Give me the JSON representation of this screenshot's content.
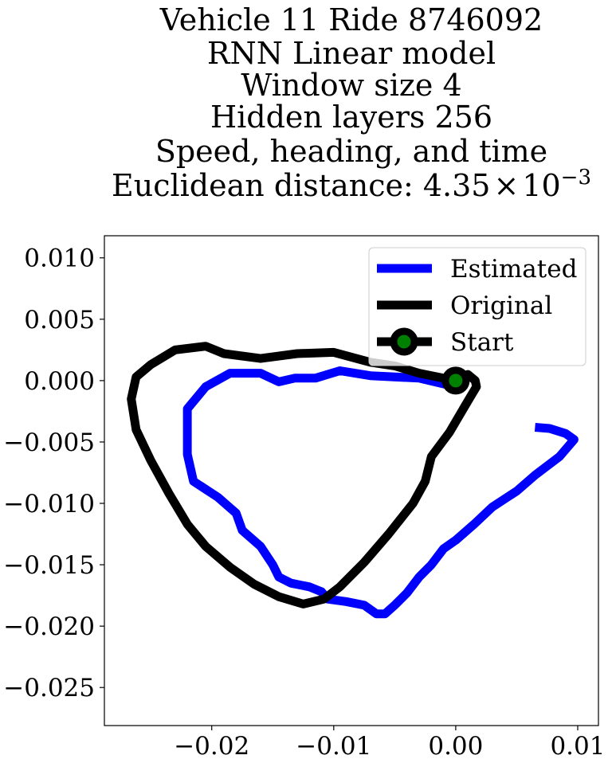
{
  "chart_data": {
    "type": "line",
    "title_lines": [
      "Vehicle 11 Ride 8746092",
      "RNN Linear model",
      "Window size 4",
      "Hidden layers 256",
      "Speed, heading, and time"
    ],
    "title_metric": {
      "label": "Euclidean distance: ",
      "mantissa": "4.35",
      "times": "×",
      "base": "10",
      "exponent": "−3"
    },
    "xlabel": "",
    "ylabel": "",
    "xlim": [
      -0.0288,
      0.0117
    ],
    "ylim": [
      -0.0281,
      0.0118
    ],
    "x_ticks": [
      -0.02,
      -0.01,
      0.0,
      0.01
    ],
    "x_tick_labels": [
      "−0.02",
      "−0.01",
      "0.00",
      "0.01"
    ],
    "y_ticks": [
      0.01,
      0.005,
      0.0,
      -0.005,
      -0.01,
      -0.015,
      -0.02,
      -0.025
    ],
    "y_tick_labels": [
      "0.010",
      "0.005",
      "0.000",
      "−0.005",
      "−0.010",
      "−0.015",
      "−0.020",
      "−0.025"
    ],
    "grid": false,
    "legend_position": "top-right",
    "series": [
      {
        "name": "Estimated",
        "color": "#0000ff",
        "x": [
          0.0,
          -0.003,
          -0.007,
          -0.0095,
          -0.0115,
          -0.0132,
          -0.0145,
          -0.016,
          -0.0185,
          -0.0205,
          -0.022,
          -0.022,
          -0.0215,
          -0.0195,
          -0.018,
          -0.0175,
          -0.016,
          -0.015,
          -0.0145,
          -0.0135,
          -0.012,
          -0.011,
          -0.0105,
          -0.009,
          -0.0075,
          -0.0065,
          -0.0058,
          -0.005,
          -0.004,
          -0.003,
          -0.002,
          -0.001,
          0.0,
          0.0015,
          0.003,
          0.005,
          0.0065,
          0.0085,
          0.0097,
          0.009,
          0.0077,
          0.0065
        ],
        "y": [
          -0.0005,
          0.0002,
          0.0004,
          0.0008,
          0.0002,
          0.0002,
          -0.0001,
          0.0006,
          0.0006,
          -0.0005,
          -0.0023,
          -0.006,
          -0.0082,
          -0.0095,
          -0.0108,
          -0.0122,
          -0.0135,
          -0.015,
          -0.016,
          -0.0165,
          -0.0168,
          -0.0172,
          -0.0178,
          -0.018,
          -0.0183,
          -0.019,
          -0.019,
          -0.0183,
          -0.0173,
          -0.016,
          -0.015,
          -0.0137,
          -0.013,
          -0.0117,
          -0.0103,
          -0.009,
          -0.0077,
          -0.0062,
          -0.0048,
          -0.0043,
          -0.0039,
          -0.0038
        ]
      },
      {
        "name": "Original",
        "color": "#000000",
        "x": [
          0.0,
          -0.003,
          -0.005,
          -0.007,
          -0.01,
          -0.013,
          -0.016,
          -0.019,
          -0.0205,
          -0.023,
          -0.025,
          -0.0262,
          -0.0266,
          -0.0262,
          -0.025,
          -0.0235,
          -0.022,
          -0.0205,
          -0.0185,
          -0.0165,
          -0.0145,
          -0.0125,
          -0.0108,
          -0.0095,
          -0.0075,
          -0.0055,
          -0.0035,
          -0.0025,
          -0.002,
          -0.0005,
          0.0008,
          0.0017,
          0.0016,
          0.001,
          0.0002,
          -0.0007
        ],
        "y": [
          0.0,
          0.0006,
          0.0012,
          0.0015,
          0.0023,
          0.0022,
          0.0018,
          0.0022,
          0.0028,
          0.0025,
          0.0013,
          0.0003,
          -0.0015,
          -0.004,
          -0.0065,
          -0.0092,
          -0.0117,
          -0.0135,
          -0.0152,
          -0.0166,
          -0.0176,
          -0.0182,
          -0.0178,
          -0.0168,
          -0.0148,
          -0.0125,
          -0.01,
          -0.0082,
          -0.0062,
          -0.0042,
          -0.002,
          -0.0005,
          0.0,
          0.0005,
          0.0002,
          -0.0004
        ]
      }
    ],
    "start_point": {
      "name": "Start",
      "x": 0.0,
      "y": 0.0,
      "color": "#008000",
      "edge_color": "#000000"
    }
  }
}
